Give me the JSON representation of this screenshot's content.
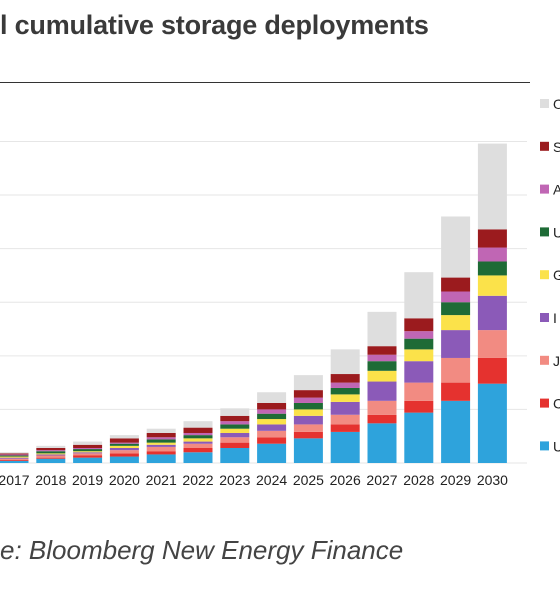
{
  "header": {
    "title": "l cumulative storage deployments"
  },
  "footer": {
    "source": "e: Bloomberg New Energy Finance"
  },
  "colors": {
    "grid": "#e6e6e6",
    "series": [
      "#2ea3dc",
      "#e5322f",
      "#f28b82",
      "#8b5ab8",
      "#fbe24a",
      "#1e6b36",
      "#c066b4",
      "#9b1b1e",
      "#dedede"
    ]
  },
  "chart_data": {
    "type": "bar",
    "stacked": true,
    "categories": [
      "2017",
      "2018",
      "2019",
      "2020",
      "2021",
      "2022",
      "2023",
      "2024",
      "2025",
      "2026",
      "2027",
      "2028",
      "2029",
      "2030"
    ],
    "ylim": [
      0,
      320
    ],
    "grid": true,
    "legend_position": "right",
    "series": [
      {
        "name": "U",
        "values": [
          2,
          4,
          5,
          6,
          8,
          10,
          14,
          18,
          23,
          29,
          37,
          47,
          58,
          74
        ]
      },
      {
        "name": "C",
        "values": [
          1,
          1,
          2,
          3,
          3,
          4,
          5,
          6,
          6,
          7,
          8,
          11,
          17,
          24
        ]
      },
      {
        "name": "J",
        "values": [
          1,
          2,
          2,
          3,
          4,
          4,
          5,
          6,
          7,
          9,
          13,
          17,
          23,
          26
        ]
      },
      {
        "name": "I",
        "values": [
          1,
          1,
          1,
          2,
          2,
          2,
          4,
          6,
          8,
          12,
          18,
          20,
          26,
          32
        ]
      },
      {
        "name": "G",
        "values": [
          1,
          1,
          1,
          2,
          2,
          3,
          4,
          5,
          6,
          7,
          10,
          11,
          14,
          19
        ]
      },
      {
        "name": "U",
        "values": [
          1,
          2,
          2,
          2,
          3,
          3,
          4,
          5,
          6,
          6,
          9,
          10,
          12,
          13
        ]
      },
      {
        "name": "A",
        "values": [
          1,
          1,
          1,
          1,
          2,
          2,
          3,
          4,
          5,
          5,
          6,
          7,
          10,
          13
        ]
      },
      {
        "name": "S",
        "values": [
          1,
          2,
          3,
          4,
          4,
          5,
          5,
          6,
          7,
          8,
          8,
          12,
          13,
          17
        ]
      },
      {
        "name": "O",
        "values": [
          1,
          2,
          3,
          3,
          4,
          6,
          7,
          10,
          14,
          23,
          32,
          43,
          57,
          80
        ]
      }
    ]
  }
}
